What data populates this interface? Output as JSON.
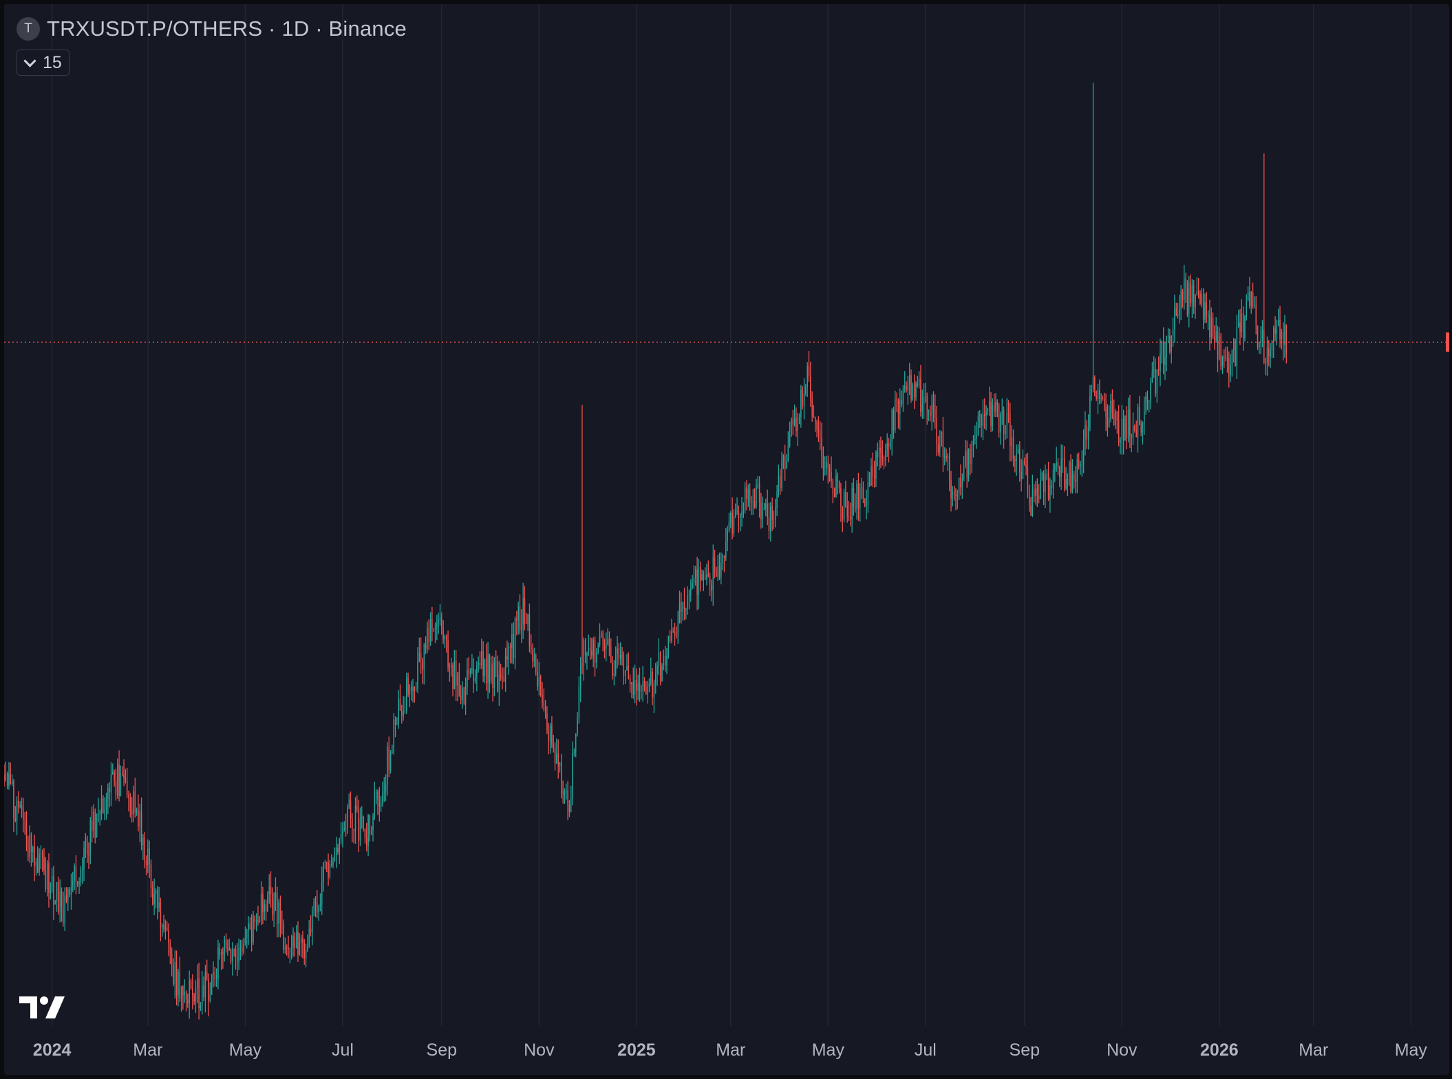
{
  "legend": {
    "symbol_icon_letter": "T",
    "title": "TRXUSDT.P/OTHERS · 1D · Binance"
  },
  "indicator_toggle": {
    "value": "15"
  },
  "colors": {
    "background": "#161824",
    "grid": "#232634",
    "up": "#26a69a",
    "down": "#ef5350",
    "axis_text": "#b2b5be",
    "price_line": "#ef5350"
  },
  "chart_data": {
    "type": "candlestick",
    "interval": "1D",
    "x_range": [
      "2023-12-02",
      "2026-05-25"
    ],
    "x_ticks": [
      {
        "label": "2024",
        "date": "2024-01-01",
        "bold": true
      },
      {
        "label": "Mar",
        "date": "2024-03-01",
        "bold": false
      },
      {
        "label": "May",
        "date": "2024-05-01",
        "bold": false
      },
      {
        "label": "Jul",
        "date": "2024-07-01",
        "bold": false
      },
      {
        "label": "Sep",
        "date": "2024-09-01",
        "bold": false
      },
      {
        "label": "Nov",
        "date": "2024-11-01",
        "bold": false
      },
      {
        "label": "2025",
        "date": "2025-01-01",
        "bold": true
      },
      {
        "label": "Mar",
        "date": "2025-03-01",
        "bold": false
      },
      {
        "label": "May",
        "date": "2025-05-01",
        "bold": false
      },
      {
        "label": "Jul",
        "date": "2025-07-01",
        "bold": false
      },
      {
        "label": "Sep",
        "date": "2025-09-01",
        "bold": false
      },
      {
        "label": "Nov",
        "date": "2025-11-01",
        "bold": false
      },
      {
        "label": "2026",
        "date": "2026-01-01",
        "bold": true
      },
      {
        "label": "Mar",
        "date": "2026-03-01",
        "bold": false
      },
      {
        "label": "May",
        "date": "2026-05-01",
        "bold": false
      }
    ],
    "y_range": [
      0.2,
      1.5
    ],
    "last_price": 1.07,
    "grid": {
      "vertical": true,
      "horizontal": false
    },
    "path_points": [
      [
        "2023-12-02",
        0.52
      ],
      [
        "2023-12-20",
        0.42
      ],
      [
        "2024-01-08",
        0.35
      ],
      [
        "2024-01-25",
        0.44
      ],
      [
        "2024-02-08",
        0.52
      ],
      [
        "2024-02-22",
        0.48
      ],
      [
        "2024-03-08",
        0.34
      ],
      [
        "2024-03-18",
        0.26
      ],
      [
        "2024-03-28",
        0.24
      ],
      [
        "2024-04-08",
        0.25
      ],
      [
        "2024-04-18",
        0.31
      ],
      [
        "2024-04-28",
        0.28
      ],
      [
        "2024-05-08",
        0.34
      ],
      [
        "2024-05-18",
        0.36
      ],
      [
        "2024-05-28",
        0.3
      ],
      [
        "2024-06-08",
        0.3
      ],
      [
        "2024-06-22",
        0.41
      ],
      [
        "2024-07-05",
        0.48
      ],
      [
        "2024-07-15",
        0.44
      ],
      [
        "2024-07-25",
        0.5
      ],
      [
        "2024-08-05",
        0.6
      ],
      [
        "2024-08-18",
        0.66
      ],
      [
        "2024-08-30",
        0.72
      ],
      [
        "2024-09-12",
        0.62
      ],
      [
        "2024-09-25",
        0.66
      ],
      [
        "2024-10-10",
        0.64
      ],
      [
        "2024-10-22",
        0.74
      ],
      [
        "2024-11-05",
        0.58
      ],
      [
        "2024-11-20",
        0.48
      ],
      [
        "2024-11-28",
        0.68
      ],
      [
        "2024-12-10",
        0.68
      ],
      [
        "2024-12-25",
        0.65
      ],
      [
        "2025-01-08",
        0.62
      ],
      [
        "2025-01-22",
        0.69
      ],
      [
        "2025-02-05",
        0.76
      ],
      [
        "2025-02-20",
        0.78
      ],
      [
        "2025-03-05",
        0.86
      ],
      [
        "2025-03-15",
        0.88
      ],
      [
        "2025-03-25",
        0.84
      ],
      [
        "2025-04-08",
        0.96
      ],
      [
        "2025-04-18",
        1.02
      ],
      [
        "2025-04-28",
        0.93
      ],
      [
        "2025-05-10",
        0.86
      ],
      [
        "2025-05-22",
        0.87
      ],
      [
        "2025-06-05",
        0.94
      ],
      [
        "2025-06-20",
        1.02
      ],
      [
        "2025-07-05",
        0.98
      ],
      [
        "2025-07-20",
        0.87
      ],
      [
        "2025-08-05",
        0.98
      ],
      [
        "2025-08-20",
        0.97
      ],
      [
        "2025-09-05",
        0.87
      ],
      [
        "2025-09-20",
        0.9
      ],
      [
        "2025-10-05",
        0.9
      ],
      [
        "2025-10-15",
        1.02
      ],
      [
        "2025-10-28",
        0.96
      ],
      [
        "2025-11-12",
        0.97
      ],
      [
        "2025-11-28",
        1.06
      ],
      [
        "2025-12-10",
        1.13
      ],
      [
        "2025-12-22",
        1.12
      ],
      [
        "2026-01-06",
        1.03
      ],
      [
        "2026-01-20",
        1.12
      ],
      [
        "2026-01-30",
        1.05
      ],
      [
        "2026-02-05",
        1.09
      ],
      [
        "2026-02-12",
        1.07
      ]
    ],
    "spikes": [
      {
        "date": "2024-11-28",
        "high": 0.99
      },
      {
        "date": "2025-10-14",
        "high": 1.4
      },
      {
        "date": "2026-01-29",
        "high": 1.31
      }
    ]
  }
}
